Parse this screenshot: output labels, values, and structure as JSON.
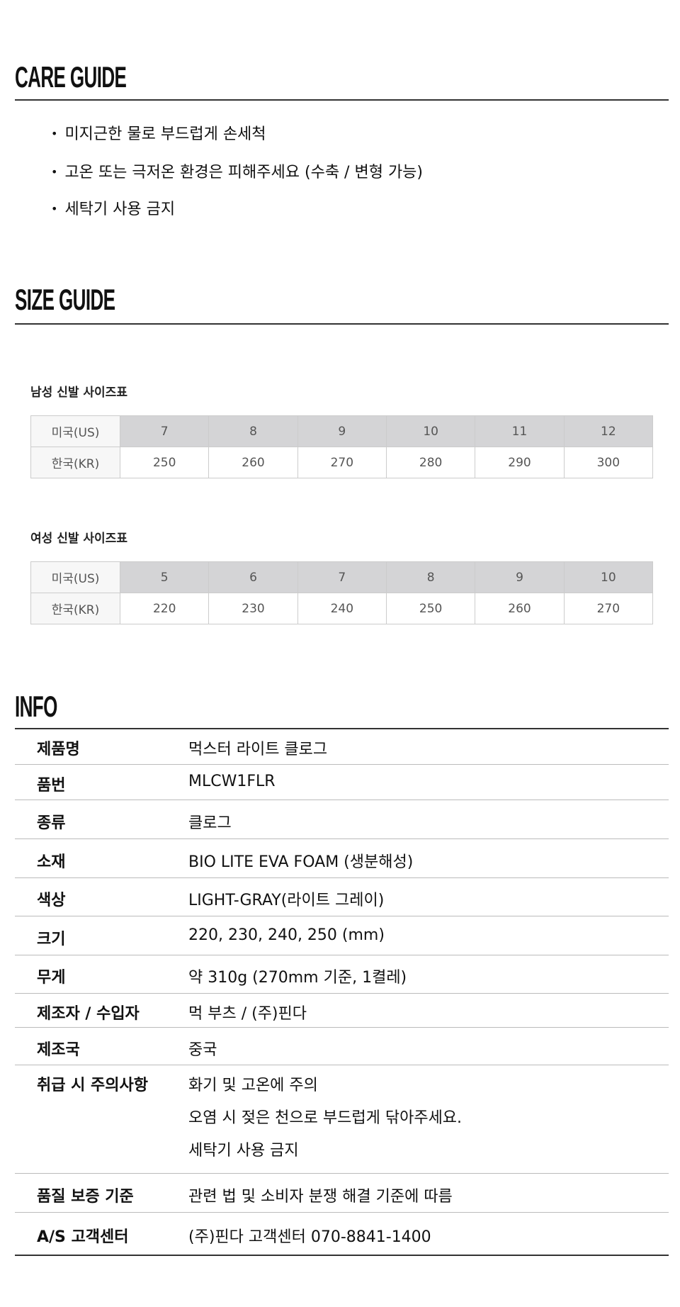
{
  "care": {
    "title": "CARE GUIDE",
    "items": [
      "미지근한 물로 부드럽게 손세척",
      "고온 또는 극저온 환경은 피해주세요 (수축 / 변형 가능)",
      "세탁기 사용 금지"
    ]
  },
  "size": {
    "title": "SIZE GUIDE",
    "men": {
      "title": "남성 신발 사이즈표",
      "us_label": "미국(US)",
      "kr_label": "한국(KR)",
      "us": [
        "7",
        "8",
        "9",
        "10",
        "11",
        "12"
      ],
      "kr": [
        "250",
        "260",
        "270",
        "280",
        "290",
        "300"
      ]
    },
    "women": {
      "title": "여성 신발 사이즈표",
      "us_label": "미국(US)",
      "kr_label": "한국(KR)",
      "us": [
        "5",
        "6",
        "7",
        "8",
        "9",
        "10"
      ],
      "kr": [
        "220",
        "230",
        "240",
        "250",
        "260",
        "270"
      ]
    },
    "header_color": "#d4d4d6"
  },
  "info": {
    "title": "INFO",
    "rows": [
      {
        "label": "제품명",
        "values": [
          "먹스터 라이트 클로그"
        ]
      },
      {
        "label": "품번",
        "values": [
          "MLCW1FLR"
        ]
      },
      {
        "label": "종류",
        "values": [
          "클로그"
        ]
      },
      {
        "label": "소재",
        "values": [
          "BIO LITE EVA FOAM (생분해성)"
        ]
      },
      {
        "label": "색상",
        "values": [
          "LIGHT-GRAY(라이트 그레이)"
        ]
      },
      {
        "label": "크기",
        "values": [
          "220, 230, 240, 250 (mm)"
        ]
      },
      {
        "label": "무게",
        "values": [
          "약 310g (270mm 기준, 1켤레)"
        ]
      },
      {
        "label": "제조자 / 수입자",
        "values": [
          "먹 부츠 / (주)핀다"
        ]
      },
      {
        "label": "제조국",
        "values": [
          "중국"
        ]
      },
      {
        "label": "취급 시 주의사항",
        "values": [
          "화기 및 고온에 주의",
          "오염 시 젖은 천으로 부드럽게 닦아주세요.",
          "세탁기 사용 금지"
        ]
      },
      {
        "label": "품질 보증 기준",
        "values": [
          "관련 법 및 소비자 분쟁 해결 기준에 따름"
        ]
      },
      {
        "label": "A/S 고객센터",
        "values": [
          "(주)핀다 고객센터 070-8841-1400"
        ]
      }
    ]
  }
}
